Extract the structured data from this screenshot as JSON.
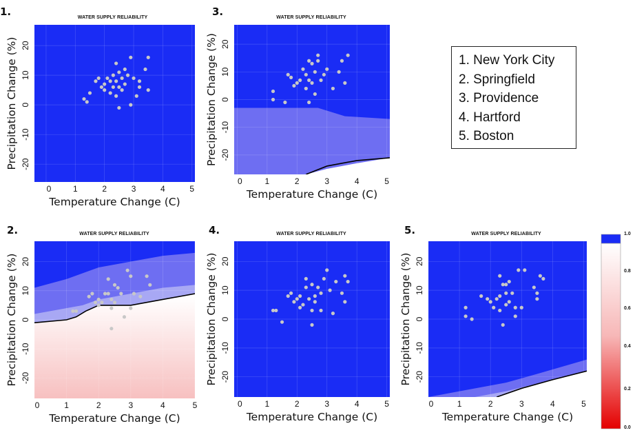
{
  "legend": [
    "1. New York City",
    "2. Springfield",
    "3. Providence",
    "4. Hartford",
    "5. Boston"
  ],
  "colors": {
    "blue": "#1a2cf5",
    "mid_blue": "#6e6ef2",
    "light_blue": "#a8a8f4",
    "red": "#e40000",
    "white": "#ffffff",
    "point": "#c8c8c8"
  },
  "chart_data": [
    {
      "type": "scatter",
      "panel_number": "1.",
      "title": "WATER SUPPLY RELIABILITY",
      "xlabel": "Temperature Change (C)",
      "ylabel": "Precipitation Change (%)",
      "xlim": [
        -0.4,
        5.1
      ],
      "ylim": [
        -26,
        27
      ],
      "xticks": [
        "0",
        "1",
        "2",
        "3",
        "4",
        "5"
      ],
      "yticks": [
        "-20",
        "-10",
        "0",
        "10",
        "20"
      ],
      "background": "reliability 1.0 everywhere",
      "regions": [],
      "contour": [],
      "points": [
        [
          1.3,
          2
        ],
        [
          1.4,
          1
        ],
        [
          1.5,
          4
        ],
        [
          1.7,
          8
        ],
        [
          1.8,
          9
        ],
        [
          1.9,
          6
        ],
        [
          2.0,
          7
        ],
        [
          2.0,
          5
        ],
        [
          2.1,
          9
        ],
        [
          2.2,
          8
        ],
        [
          2.2,
          4
        ],
        [
          2.3,
          10
        ],
        [
          2.3,
          6
        ],
        [
          2.4,
          14
        ],
        [
          2.4,
          8
        ],
        [
          2.4,
          3
        ],
        [
          2.5,
          11
        ],
        [
          2.5,
          6
        ],
        [
          2.5,
          -1
        ],
        [
          2.6,
          9
        ],
        [
          2.6,
          5
        ],
        [
          2.7,
          12
        ],
        [
          2.7,
          7
        ],
        [
          2.8,
          10
        ],
        [
          2.9,
          0
        ],
        [
          2.9,
          16
        ],
        [
          3.0,
          9
        ],
        [
          3.1,
          3
        ],
        [
          3.2,
          8
        ],
        [
          3.2,
          6
        ],
        [
          3.4,
          12
        ],
        [
          3.5,
          16
        ],
        [
          3.5,
          5
        ]
      ]
    },
    {
      "type": "scatter",
      "panel_number": "3.",
      "title": "WATER SUPPLY RELIABILITY",
      "xlabel": "Temperature Change (C)",
      "ylabel": "Precipitation Change (%)",
      "xlim": [
        -0.1,
        5.1
      ],
      "ylim": [
        -27,
        27
      ],
      "xticks": [
        "0",
        "1",
        "2",
        "3",
        "4",
        "5"
      ],
      "yticks": [
        "-20",
        "-10",
        "0",
        "10",
        "20"
      ],
      "background": "reliability 1.0 above, declining toward lower right",
      "regions": [
        {
          "color": "mid_blue",
          "boundary": [
            [
              0,
              -3
            ],
            [
              2.3,
              -3
            ],
            [
              2.7,
              -3
            ],
            [
              3.6,
              -6
            ],
            [
              5.1,
              -7
            ]
          ]
        },
        {
          "color": "light_blue",
          "boundary": [
            [
              2.3,
              -27
            ],
            [
              3.0,
              -25
            ],
            [
              4.0,
              -23
            ],
            [
              5.1,
              -22
            ]
          ]
        },
        {
          "color": "white",
          "boundary": [
            [
              2.3,
              -27
            ],
            [
              3.0,
              -25
            ],
            [
              4.0,
              -23
            ],
            [
              5.1,
              -21
            ]
          ]
        }
      ],
      "contour": [
        [
          2.3,
          -27
        ],
        [
          3.0,
          -24
        ],
        [
          4.0,
          -22
        ],
        [
          5.1,
          -21
        ]
      ],
      "points": [
        [
          1.2,
          3
        ],
        [
          1.2,
          0
        ],
        [
          1.6,
          -1
        ],
        [
          1.7,
          9
        ],
        [
          1.8,
          8
        ],
        [
          1.9,
          5
        ],
        [
          2.0,
          6
        ],
        [
          2.1,
          7
        ],
        [
          2.2,
          11
        ],
        [
          2.3,
          9
        ],
        [
          2.3,
          4
        ],
        [
          2.4,
          14
        ],
        [
          2.4,
          7
        ],
        [
          2.4,
          -1
        ],
        [
          2.5,
          13
        ],
        [
          2.5,
          6
        ],
        [
          2.6,
          10
        ],
        [
          2.6,
          2
        ],
        [
          2.7,
          14
        ],
        [
          2.7,
          16
        ],
        [
          2.8,
          7
        ],
        [
          2.9,
          9
        ],
        [
          3.0,
          11
        ],
        [
          3.2,
          4
        ],
        [
          3.4,
          10
        ],
        [
          3.5,
          14
        ],
        [
          3.6,
          6
        ],
        [
          3.7,
          16
        ]
      ]
    },
    {
      "type": "scatter",
      "panel_number": "2.",
      "title": "WATER SUPPLY RELIABILITY",
      "xlabel": "Temperature Change (C)",
      "ylabel": "Precipitation Change (%)",
      "xlim": [
        0,
        5
      ],
      "ylim": [
        -27,
        27
      ],
      "xticks": [
        "0",
        "1",
        "2",
        "3",
        "4",
        "5"
      ],
      "yticks": [
        "-20",
        "-10",
        "0",
        "10",
        "20"
      ],
      "background": "reliability below 1.0 under contour, fading to red at bottom",
      "regions": [
        {
          "color": "mid_blue",
          "boundary": [
            [
              0,
              11
            ],
            [
              1.0,
              14
            ],
            [
              2.0,
              18
            ],
            [
              3.0,
              20
            ],
            [
              4.0,
              22
            ],
            [
              5.0,
              23
            ]
          ]
        },
        {
          "color": "light_blue",
          "boundary": [
            [
              0,
              2
            ],
            [
              1.5,
              5
            ],
            [
              2.0,
              7
            ],
            [
              3.0,
              9
            ],
            [
              4.0,
              11
            ],
            [
              5.0,
              12
            ]
          ]
        }
      ],
      "contour": [
        [
          0,
          -1
        ],
        [
          1.0,
          0
        ],
        [
          1.3,
          1
        ],
        [
          1.6,
          3
        ],
        [
          2.0,
          5
        ],
        [
          3.0,
          5
        ],
        [
          4.0,
          7
        ],
        [
          5.0,
          9
        ]
      ],
      "points": [
        [
          1.2,
          3
        ],
        [
          1.3,
          3
        ],
        [
          1.7,
          8
        ],
        [
          1.8,
          9
        ],
        [
          1.9,
          6
        ],
        [
          2.0,
          7
        ],
        [
          2.0,
          5
        ],
        [
          2.1,
          6
        ],
        [
          2.2,
          9
        ],
        [
          2.3,
          14
        ],
        [
          2.3,
          9
        ],
        [
          2.4,
          7
        ],
        [
          2.4,
          -3
        ],
        [
          2.4,
          4
        ],
        [
          2.5,
          12
        ],
        [
          2.5,
          6
        ],
        [
          2.6,
          11
        ],
        [
          2.7,
          9
        ],
        [
          2.8,
          1
        ],
        [
          2.9,
          17
        ],
        [
          3.0,
          15
        ],
        [
          3.0,
          4
        ],
        [
          3.1,
          9
        ],
        [
          3.3,
          8
        ],
        [
          3.5,
          15
        ],
        [
          3.6,
          12
        ]
      ]
    },
    {
      "type": "scatter",
      "panel_number": "4.",
      "title": "WATER SUPPLY RELIABILITY",
      "xlabel": "Temperature Change (C)",
      "ylabel": "Precipitation Change (%)",
      "xlim": [
        -0.1,
        5.1
      ],
      "ylim": [
        -27,
        27
      ],
      "xticks": [
        "0",
        "1",
        "2",
        "3",
        "4",
        "5"
      ],
      "yticks": [
        "-20",
        "-10",
        "0",
        "10",
        "20"
      ],
      "background": "reliability 1.0 everywhere",
      "regions": [],
      "contour": [],
      "points": [
        [
          1.2,
          3
        ],
        [
          1.3,
          3
        ],
        [
          1.5,
          -1
        ],
        [
          1.7,
          8
        ],
        [
          1.8,
          9
        ],
        [
          1.9,
          6
        ],
        [
          2.0,
          7
        ],
        [
          2.1,
          4
        ],
        [
          2.1,
          8
        ],
        [
          2.2,
          5
        ],
        [
          2.3,
          14
        ],
        [
          2.3,
          11
        ],
        [
          2.4,
          7
        ],
        [
          2.5,
          12
        ],
        [
          2.5,
          3
        ],
        [
          2.5,
          -2
        ],
        [
          2.6,
          8
        ],
        [
          2.6,
          6
        ],
        [
          2.7,
          11
        ],
        [
          2.8,
          9
        ],
        [
          2.8,
          3
        ],
        [
          2.9,
          14
        ],
        [
          3.0,
          17
        ],
        [
          3.1,
          10
        ],
        [
          3.2,
          2
        ],
        [
          3.3,
          13
        ],
        [
          3.5,
          9
        ],
        [
          3.6,
          15
        ],
        [
          3.6,
          6
        ],
        [
          3.7,
          13
        ]
      ]
    },
    {
      "type": "scatter",
      "panel_number": "5.",
      "title": "WATER SUPPLY RELIABILITY",
      "xlabel": "Temperature Change (C)",
      "ylabel": "Precipitation Change (%)",
      "xlim": [
        0,
        5.1
      ],
      "ylim": [
        -27,
        27
      ],
      "xticks": [
        "0",
        "1",
        "2",
        "3",
        "4",
        "5"
      ],
      "yticks": [
        "-20",
        "-10",
        "0",
        "10",
        "20"
      ],
      "background": "reliability 1.0 above, declining toward lower right",
      "regions": [
        {
          "color": "mid_blue",
          "boundary": [
            [
              0,
              -27
            ],
            [
              1.0,
              -25
            ],
            [
              2.5,
              -22
            ],
            [
              3.5,
              -19
            ],
            [
              5.1,
              -14
            ]
          ]
        },
        {
          "color": "light_blue",
          "boundary": [
            [
              0,
              -27
            ],
            [
              1.5,
              -27
            ],
            [
              2.5,
              -25
            ],
            [
              4.0,
              -21
            ],
            [
              5.1,
              -18
            ]
          ]
        },
        {
          "color": "white",
          "boundary": [
            [
              2.2,
              -27
            ],
            [
              3.0,
              -24
            ],
            [
              4.0,
              -21
            ],
            [
              5.1,
              -18
            ]
          ]
        }
      ],
      "contour": [
        [
          2.2,
          -27
        ],
        [
          3.0,
          -24
        ],
        [
          4.0,
          -21
        ],
        [
          5.1,
          -18
        ]
      ],
      "points": [
        [
          1.2,
          4
        ],
        [
          1.2,
          1
        ],
        [
          1.4,
          0
        ],
        [
          1.7,
          8
        ],
        [
          1.9,
          7
        ],
        [
          2.0,
          6
        ],
        [
          2.1,
          4
        ],
        [
          2.2,
          7
        ],
        [
          2.3,
          3
        ],
        [
          2.3,
          8
        ],
        [
          2.3,
          15
        ],
        [
          2.4,
          12
        ],
        [
          2.4,
          -2
        ],
        [
          2.5,
          5
        ],
        [
          2.5,
          9
        ],
        [
          2.5,
          12
        ],
        [
          2.6,
          6
        ],
        [
          2.6,
          13
        ],
        [
          2.7,
          9
        ],
        [
          2.8,
          4
        ],
        [
          2.8,
          1
        ],
        [
          2.9,
          17
        ],
        [
          3.0,
          4
        ],
        [
          3.1,
          17
        ],
        [
          3.4,
          11
        ],
        [
          3.5,
          9
        ],
        [
          3.5,
          7
        ],
        [
          3.6,
          15
        ],
        [
          3.7,
          14
        ]
      ]
    }
  ],
  "colorbar": {
    "ticks": [
      "1.0",
      "0.8",
      "0.6",
      "0.4",
      "0.2",
      "0.0"
    ]
  }
}
